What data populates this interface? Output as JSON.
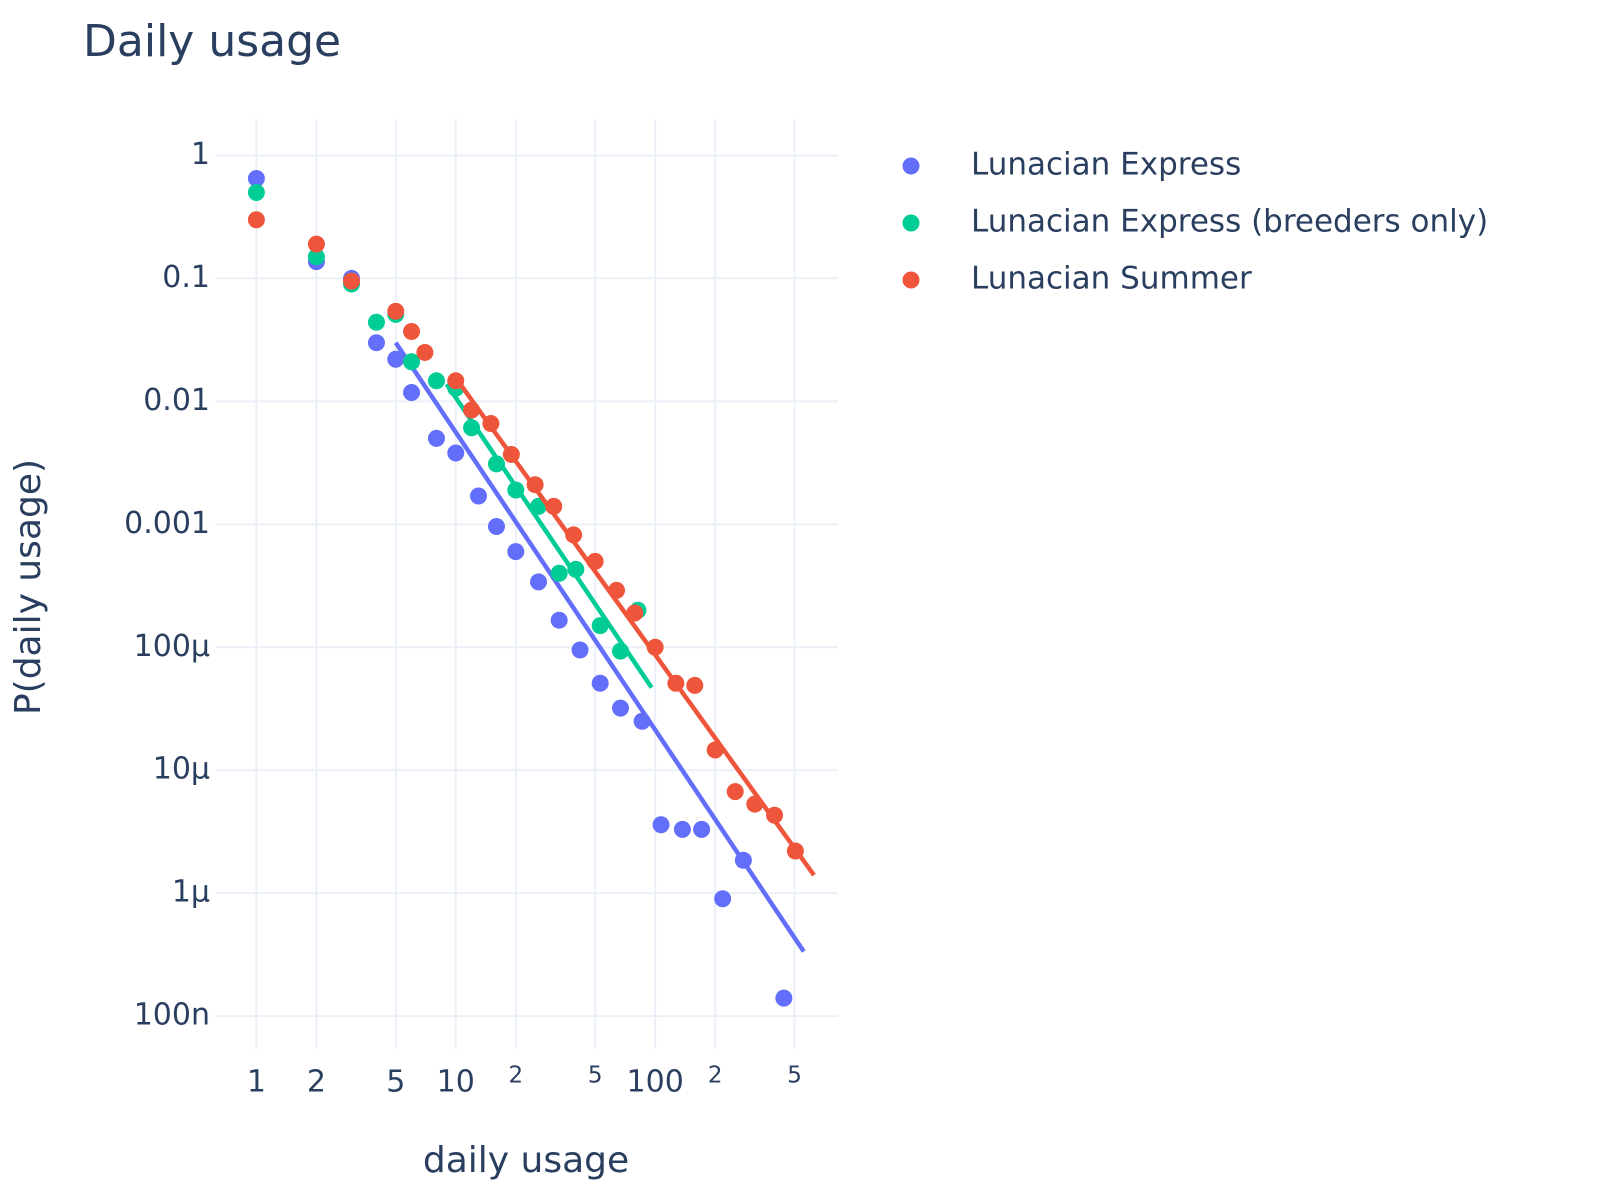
{
  "chart_data": {
    "type": "scatter",
    "title": "Daily usage",
    "x_label": "daily usage",
    "y_label": "P(daily usage)",
    "xlog": true,
    "ylog": true,
    "grid": true,
    "legend": "right",
    "xlim": [
      0.62,
      826
    ],
    "ylim": [
      5.4e-08,
      1.98
    ],
    "xticks": [
      1,
      2,
      5,
      10,
      {
        "value": 20,
        "label": "2"
      },
      {
        "value": 50,
        "label": "5"
      },
      100,
      {
        "value": 200,
        "label": "2"
      },
      {
        "value": 500,
        "label": "5"
      }
    ],
    "yticks": [
      1,
      0.1,
      0.01,
      0.001,
      {
        "value": 0.0001,
        "label": "100μ"
      },
      {
        "value": 1e-05,
        "label": "10μ"
      },
      {
        "value": 1e-06,
        "label": "1μ"
      },
      {
        "value": 1e-07,
        "label": "100n"
      }
    ],
    "series": [
      {
        "name": "Lunacian Express",
        "color": "#636efa",
        "x": [
          1,
          2,
          3,
          4,
          5,
          6,
          8,
          10,
          13,
          16,
          20,
          26,
          33,
          42,
          53,
          67,
          86,
          107,
          137,
          171,
          218,
          277,
          442
        ],
        "values": [
          0.65,
          0.137,
          0.1,
          0.03,
          0.022,
          0.0118,
          0.005,
          0.0038,
          0.0017,
          0.00096,
          0.0006,
          0.00034,
          0.000166,
          9.5e-05,
          5.1e-05,
          3.2e-05,
          2.5e-05,
          3.6e-06,
          3.3e-06,
          3.3e-06,
          9e-07,
          1.85e-06,
          1.4e-07
        ],
        "fit": {
          "x": [
            5,
            556
          ],
          "values": [
            0.03,
            3.35e-07
          ]
        }
      },
      {
        "name": "Lunacian Express (breeders only)",
        "color": "#00cc96",
        "x": [
          1,
          2,
          3,
          4,
          5,
          6,
          8,
          10,
          12,
          16,
          20,
          26,
          33,
          40,
          53,
          67,
          82
        ],
        "values": [
          0.5,
          0.15,
          0.09,
          0.044,
          0.051,
          0.021,
          0.0147,
          0.0128,
          0.0061,
          0.0031,
          0.0019,
          0.0014,
          0.0004,
          0.00043,
          0.00015,
          9.3e-05,
          0.0002
        ],
        "fit": {
          "x": [
            9,
            96
          ],
          "values": [
            0.0138,
            4.7e-05
          ]
        }
      },
      {
        "name": "Lunacian Summer",
        "color": "#ef553b",
        "x": [
          1,
          2,
          3,
          5,
          6,
          7,
          10,
          12,
          15,
          19,
          25,
          31,
          39,
          50,
          64,
          79,
          100,
          127,
          158,
          200,
          252,
          316,
          397,
          505
        ],
        "values": [
          0.3,
          0.19,
          0.095,
          0.054,
          0.037,
          0.025,
          0.0147,
          0.0085,
          0.0066,
          0.0037,
          0.0021,
          0.0014,
          0.00082,
          0.0005,
          0.00029,
          0.00019,
          0.0001,
          5.1e-05,
          4.9e-05,
          1.46e-05,
          6.7e-06,
          5.3e-06,
          4.3e-06,
          2.2e-06
        ],
        "fit": {
          "x": [
            10,
            626
          ],
          "values": [
            0.0155,
            1.4e-06
          ]
        }
      }
    ]
  }
}
